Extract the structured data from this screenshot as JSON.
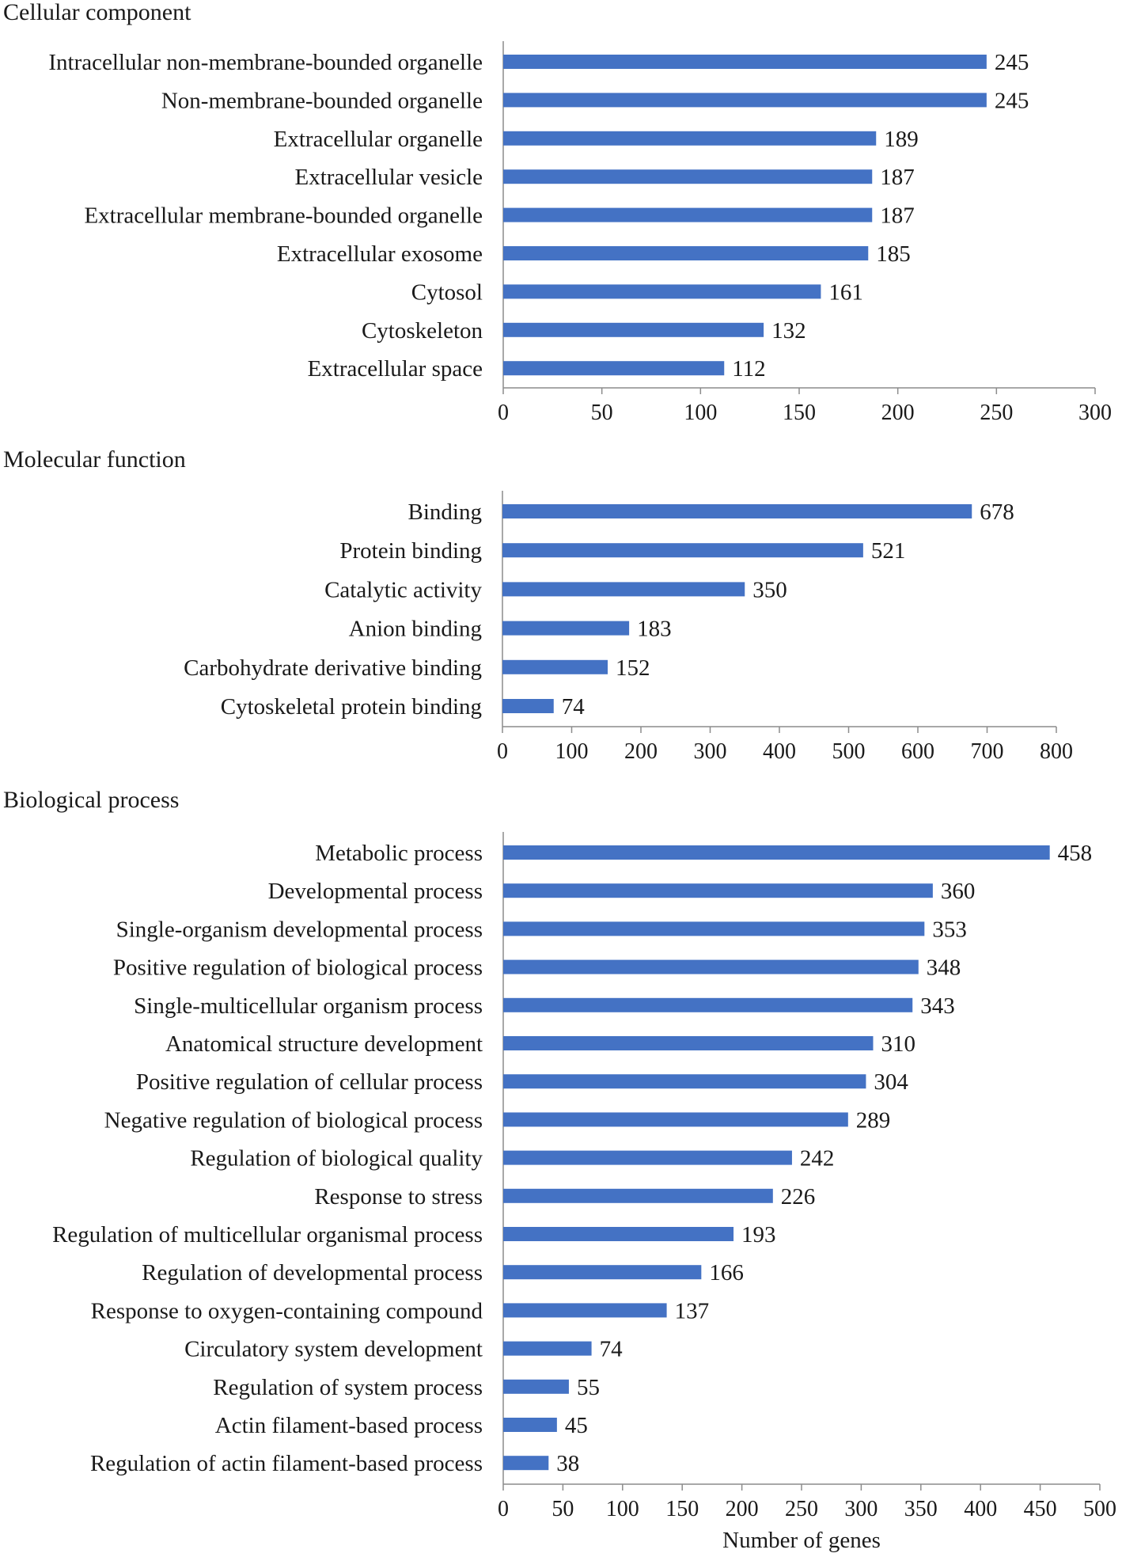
{
  "colors": {
    "bar": "#4472c4",
    "axis": "#8c8c8c",
    "text": "#1a1a1a"
  },
  "x_axis_title": "Number of genes",
  "chart_data": [
    {
      "type": "bar",
      "orientation": "horizontal",
      "title": "Cellular component",
      "categories": [
        "Intracellular non-membrane-bounded organelle",
        "Non-membrane-bounded organelle",
        "Extracellular organelle",
        "Extracellular vesicle",
        "Extracellular membrane-bounded organelle",
        "Extracellular exosome",
        "Cytosol",
        "Cytoskeleton",
        "Extracellular space"
      ],
      "values": [
        245,
        245,
        189,
        187,
        187,
        185,
        161,
        132,
        112
      ],
      "xlim": [
        0,
        300
      ],
      "ticks": [
        0,
        50,
        100,
        150,
        200,
        250,
        300
      ],
      "xlabel": "",
      "ylabel": ""
    },
    {
      "type": "bar",
      "orientation": "horizontal",
      "title": "Molecular function",
      "categories": [
        "Binding",
        "Protein binding",
        "Catalytic activity",
        "Anion binding",
        "Carbohydrate derivative binding",
        "Cytoskeletal protein binding"
      ],
      "values": [
        678,
        521,
        350,
        183,
        152,
        74
      ],
      "xlim": [
        0,
        800
      ],
      "ticks": [
        0,
        100,
        200,
        300,
        400,
        500,
        600,
        700,
        800
      ],
      "xlabel": "",
      "ylabel": ""
    },
    {
      "type": "bar",
      "orientation": "horizontal",
      "title": "Biological process",
      "categories": [
        "Metabolic process",
        "Developmental process",
        "Single-organism developmental process",
        "Positive regulation of biological process",
        "Single-multicellular organism process",
        "Anatomical structure development",
        "Positive regulation of cellular process",
        "Negative regulation of biological process",
        "Regulation of biological quality",
        "Response to stress",
        "Regulation of multicellular organismal process",
        "Regulation of developmental process",
        "Response to oxygen-containing compound",
        "Circulatory system development",
        "Regulation of system process",
        "Actin filament-based process",
        "Regulation of actin filament-based process"
      ],
      "values": [
        458,
        360,
        353,
        348,
        343,
        310,
        304,
        289,
        242,
        226,
        193,
        166,
        137,
        74,
        55,
        45,
        38
      ],
      "xlim": [
        0,
        500
      ],
      "ticks": [
        0,
        50,
        100,
        150,
        200,
        250,
        300,
        350,
        400,
        450,
        500
      ],
      "xlabel": "Number of genes",
      "ylabel": ""
    }
  ]
}
